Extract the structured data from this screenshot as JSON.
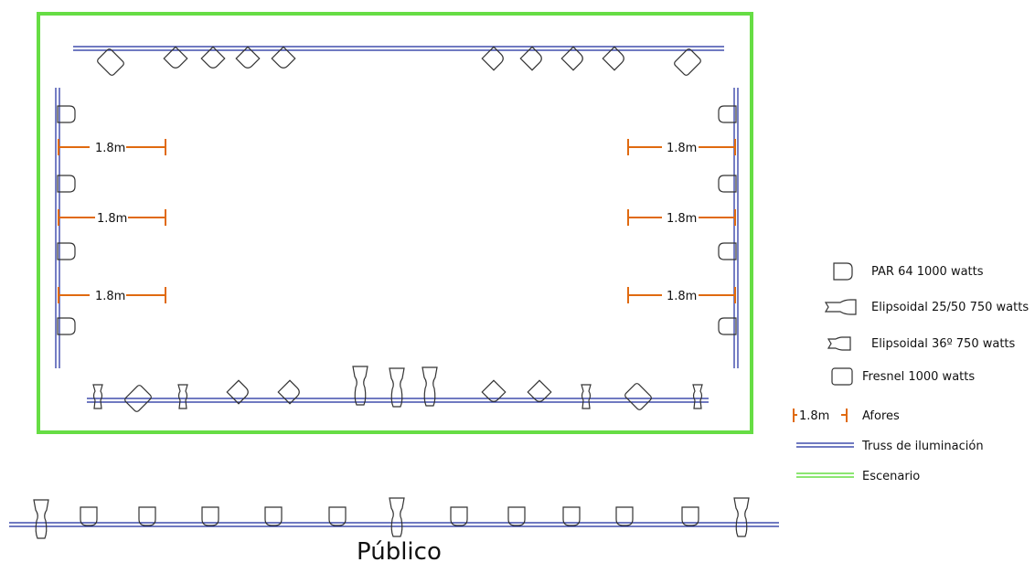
{
  "colors": {
    "stage": "#66dd44",
    "truss": "#1a2a9c",
    "afore": "#e06a10",
    "fixture": "#333333",
    "text": "#111111"
  },
  "afore_label": "1.8m",
  "legend": {
    "par64": "PAR 64 1000 watts",
    "elip2550": "Elipsoidal 25/50 750 watts",
    "elip36": "Elipsoidal 36º 750 watts",
    "fresnel": "Fresnel 1000 watts",
    "afores_value": "1.8m",
    "afores": "Afores",
    "truss": "Truss de iluminación",
    "stage": "Escenario"
  },
  "audience_label": "Público",
  "icons": {
    "par64": "par64-icon",
    "elip2550": "elipsoidal-25-50-icon",
    "elip36": "elipsoidal-36-icon",
    "fresnel": "fresnel-icon"
  }
}
